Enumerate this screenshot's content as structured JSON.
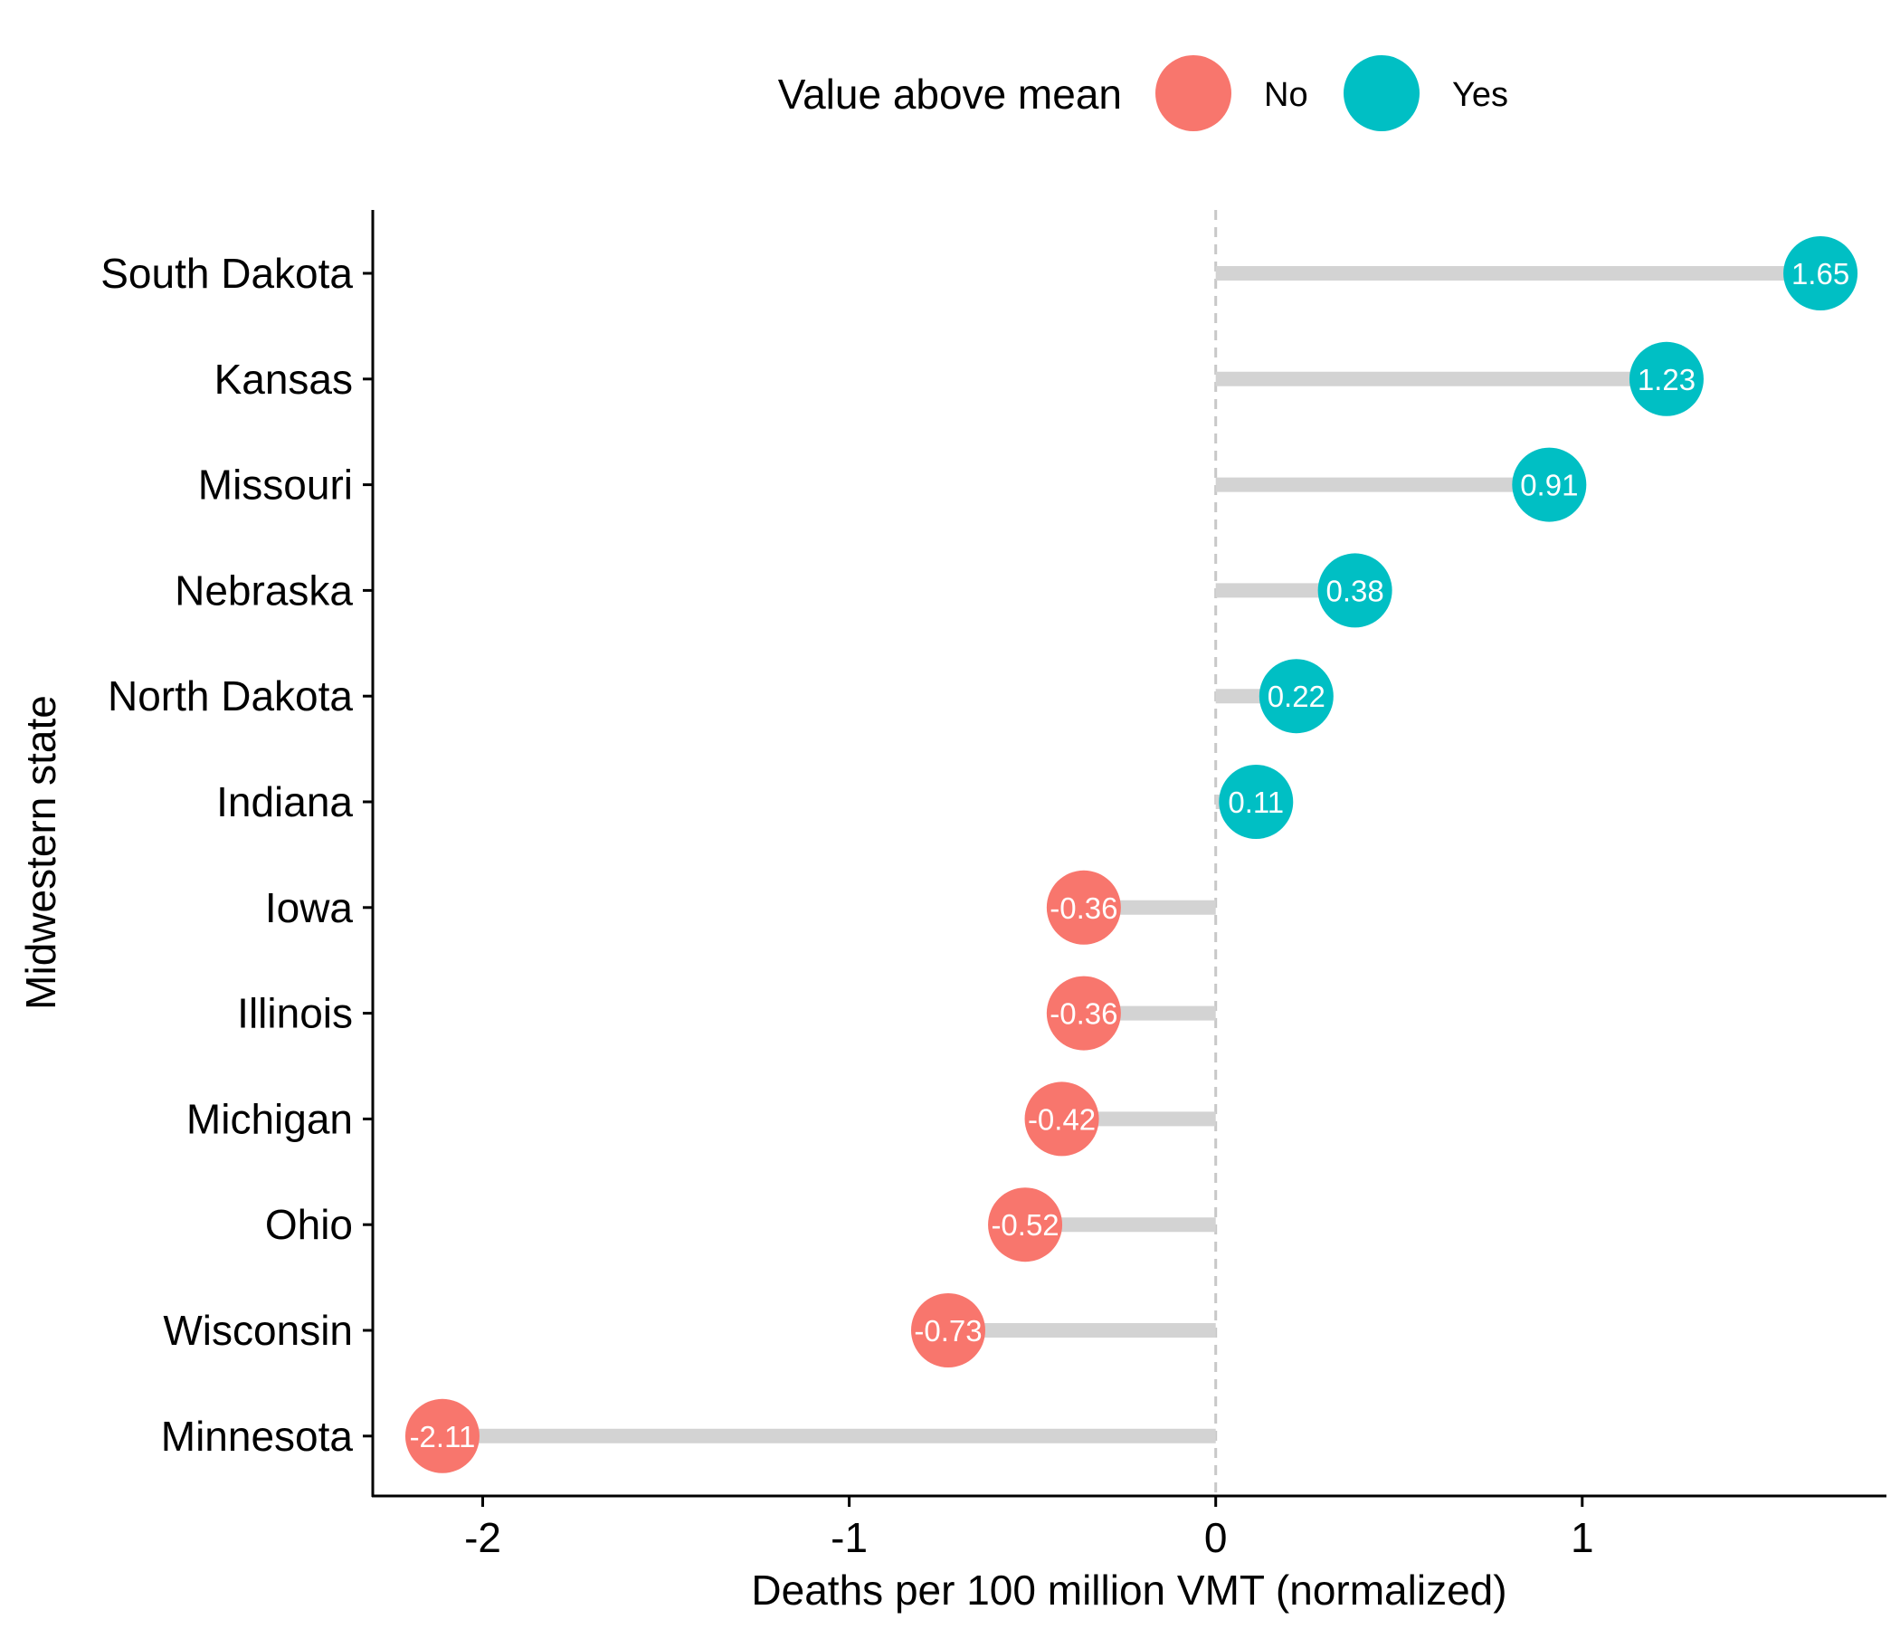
{
  "chart_data": {
    "type": "lollipop",
    "xlabel": "Deaths per 100 million VMT (normalized)",
    "ylabel": "Midwestern state",
    "xlim": [
      -2.3,
      1.83
    ],
    "x_ticks": [
      -2,
      -1,
      0,
      1
    ],
    "x_tick_labels": [
      "-2",
      "-1",
      "0",
      "1"
    ],
    "reference_line": 0,
    "grid": false,
    "legend": {
      "title": "Value above mean",
      "placement": "top",
      "items": [
        {
          "label": "No",
          "color": "#F8766D"
        },
        {
          "label": "Yes",
          "color": "#00BFC4"
        }
      ]
    },
    "stick_color": "#D3D3D3",
    "reference_line_color": "#C8C8C8",
    "categories": [
      "South Dakota",
      "Kansas",
      "Missouri",
      "Nebraska",
      "North Dakota",
      "Indiana",
      "Iowa",
      "Illinois",
      "Michigan",
      "Ohio",
      "Wisconsin",
      "Minnesota"
    ],
    "values": [
      1.65,
      1.23,
      0.91,
      0.38,
      0.22,
      0.11,
      -0.36,
      -0.36,
      -0.42,
      -0.52,
      -0.73,
      -2.11
    ],
    "labels": [
      "1.65",
      "1.23",
      "0.91",
      "0.38",
      "0.22",
      "0.11",
      "-0.36",
      "-0.36",
      "-0.42",
      "-0.52",
      "-0.73",
      "-2.11"
    ],
    "groups": [
      "Yes",
      "Yes",
      "Yes",
      "Yes",
      "Yes",
      "Yes",
      "No",
      "No",
      "No",
      "No",
      "No",
      "No"
    ]
  }
}
